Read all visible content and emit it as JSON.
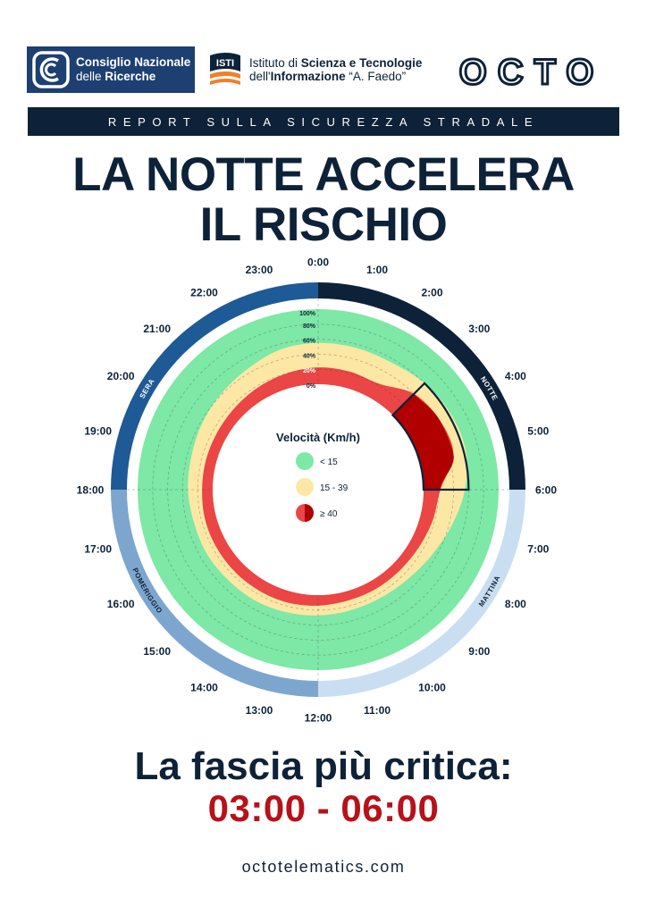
{
  "header": {
    "cnr": {
      "line1": "Consiglio Nazionale",
      "line2_prefix": "delle ",
      "line2_bold": "Ricerche"
    },
    "isti": {
      "logo_text": "ISTI",
      "line1_prefix": "Istituto di ",
      "line1_bold": "Scienza e Tecnologie",
      "line2_prefix": "dell'",
      "line2_bold": "Informazione",
      "line2_suffix": " “A. Faedo”"
    },
    "octo": "OCTO"
  },
  "banner": "REPORT SULLA SICUREZZA STRADALE",
  "title": {
    "line1": "LA NOTTE ACCELERA",
    "line2": "IL RISCHIO"
  },
  "colors": {
    "navy": "#0d2238",
    "sera": "#1e5a95",
    "pomeriggio": "#7da6cf",
    "mattina": "#c9dff1",
    "green": "#7ee8a6",
    "yellow": "#fde7a4",
    "red": "#eb4545",
    "dark_red": "#b00000",
    "accent_red": "#b8111a"
  },
  "chart_data": {
    "type": "radial-area",
    "hours": [
      "0:00",
      "1:00",
      "2:00",
      "3:00",
      "4:00",
      "5:00",
      "6:00",
      "7:00",
      "8:00",
      "9:00",
      "10:00",
      "11:00",
      "12:00",
      "13:00",
      "14:00",
      "15:00",
      "16:00",
      "17:00",
      "18:00",
      "19:00",
      "20:00",
      "21:00",
      "22:00",
      "23:00"
    ],
    "radial_ticks": [
      "0%",
      "20%",
      "40%",
      "60%",
      "80%",
      "100%"
    ],
    "legend_title": "Velocità (Km/h)",
    "series": [
      {
        "name": "< 15",
        "color": "#7ee8a6"
      },
      {
        "name": "15 - 39",
        "color": "#fde7a4"
      },
      {
        "name": "≥ 40",
        "color": "#eb4545"
      }
    ],
    "share_ge40_pct": [
      22.4,
      22.4,
      22.4,
      40,
      46,
      46,
      22.4,
      17.6,
      14.1,
      12.5,
      12.5,
      12.5,
      14.1,
      15.3,
      15.3,
      15.3,
      15.3,
      15.3,
      14.1,
      14.1,
      14.1,
      15.3,
      17.6,
      20
    ],
    "share_ge15_pct": [
      55,
      55,
      55,
      60,
      63,
      63,
      55,
      43.8,
      34.1,
      28.2,
      25.9,
      25.9,
      27.1,
      28.2,
      29.4,
      29.4,
      30.6,
      30.6,
      32.9,
      34.1,
      37.6,
      41.2,
      45.9,
      52.9
    ],
    "dayparts": [
      {
        "name": "NOTTE",
        "from": "0:00",
        "to": "6:00",
        "color": "#0d2238"
      },
      {
        "name": "MATTINA",
        "from": "6:00",
        "to": "12:00",
        "color": "#c9dff1"
      },
      {
        "name": "POMERIGGIO",
        "from": "12:00",
        "to": "18:00",
        "color": "#7da6cf"
      },
      {
        "name": "SERA",
        "from": "18:00",
        "to": "24:00",
        "color": "#1e5a95"
      }
    ],
    "highlight": {
      "from": "3:00",
      "to": "6:00"
    }
  },
  "footer": {
    "headline": "La fascia più critica:",
    "range": "03:00 - 06:00",
    "url": "octotelematics.com"
  }
}
